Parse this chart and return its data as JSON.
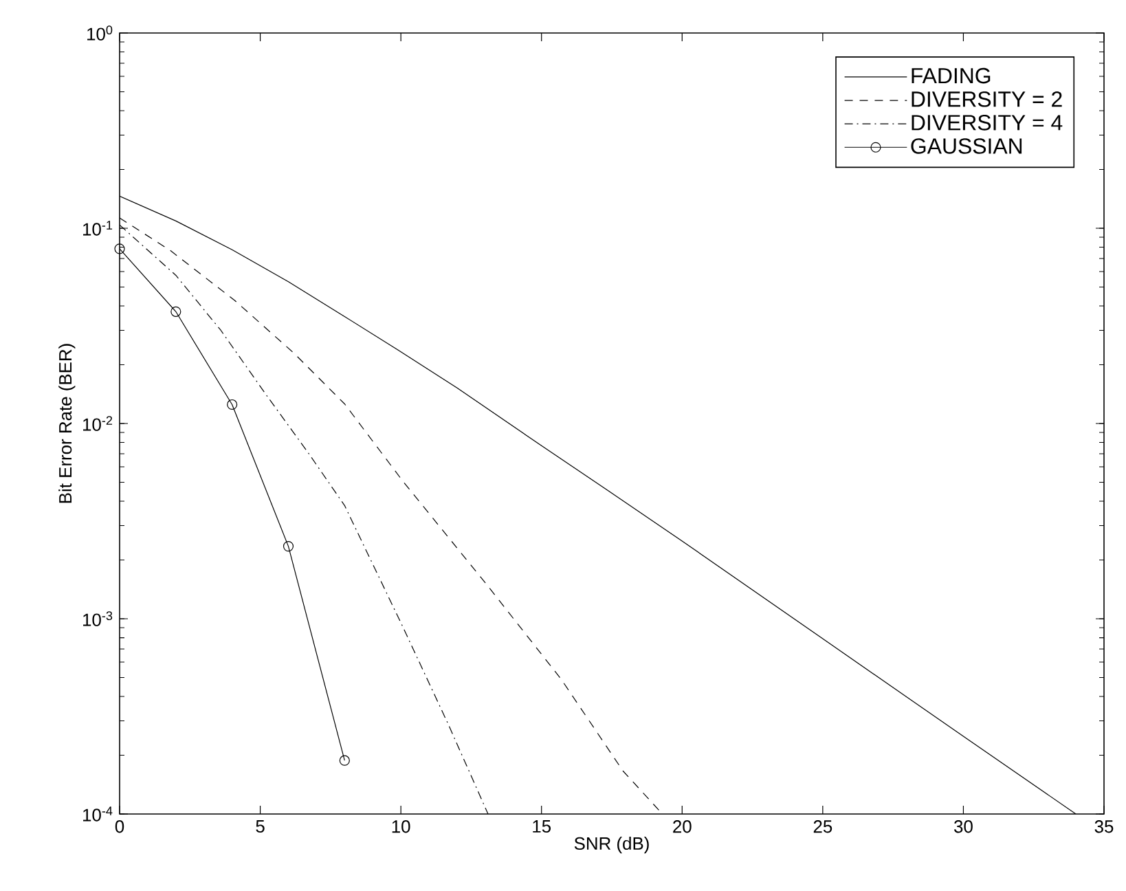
{
  "chart_data": {
    "type": "line",
    "xlabel": "SNR (dB)",
    "ylabel": "Bit Error Rate (BER)",
    "log": "y",
    "xlim": [
      0,
      35
    ],
    "ylim": [
      0.0001,
      1
    ],
    "xticks": [
      0,
      5,
      10,
      15,
      20,
      25,
      30,
      35
    ],
    "yticks": [
      {
        "value": 0.0001,
        "label": "10$^{-4}$"
      },
      {
        "value": 0.001,
        "label": "10$^{-3}$"
      },
      {
        "value": 0.01,
        "label": "10$^{-2}$"
      },
      {
        "value": 0.1,
        "label": "10$^{-1}$"
      },
      {
        "value": 1,
        "label": "10$^{0}$"
      }
    ],
    "grid": false,
    "legend": "top right",
    "series": [
      {
        "name": "FADING",
        "color": "#000000",
        "line_style": "solid",
        "marker": "none",
        "x": [
          0,
          2,
          4,
          6,
          8,
          10,
          12,
          15,
          17.3,
          20,
          25,
          30,
          34
        ],
        "values": [
          0.146,
          0.109,
          0.0776,
          0.0532,
          0.0353,
          0.0233,
          0.0152,
          0.0077,
          0.0046,
          0.0025,
          0.00079,
          0.00025,
          0.0001
        ]
      },
      {
        "name": "DIVERSITY = 2",
        "color": "#000000",
        "line_style": "dashed",
        "marker": "none",
        "x": [
          0,
          1.8,
          4.1,
          6.2,
          8,
          10.1,
          13,
          15.7,
          17.9,
          19.3
        ],
        "values": [
          0.113,
          0.077,
          0.0426,
          0.0229,
          0.0126,
          0.005,
          0.00153,
          0.00049,
          0.000166,
          0.0001
        ]
      },
      {
        "name": "DIVERSITY = 4",
        "color": "#000000",
        "line_style": "dashdot",
        "marker": "none",
        "x": [
          0,
          2,
          3.6,
          5.2,
          6.7,
          8,
          10.1,
          11.7,
          13.1
        ],
        "values": [
          0.104,
          0.0574,
          0.03,
          0.0141,
          0.0071,
          0.0038,
          0.00089,
          0.000285,
          0.0001
        ]
      },
      {
        "name": "GAUSSIAN",
        "color": "#000000",
        "line_style": "solid",
        "marker": "circle",
        "x": [
          0,
          2,
          4,
          6,
          8
        ],
        "values": [
          0.0785,
          0.0374,
          0.0125,
          0.00235,
          0.000188
        ]
      }
    ]
  }
}
